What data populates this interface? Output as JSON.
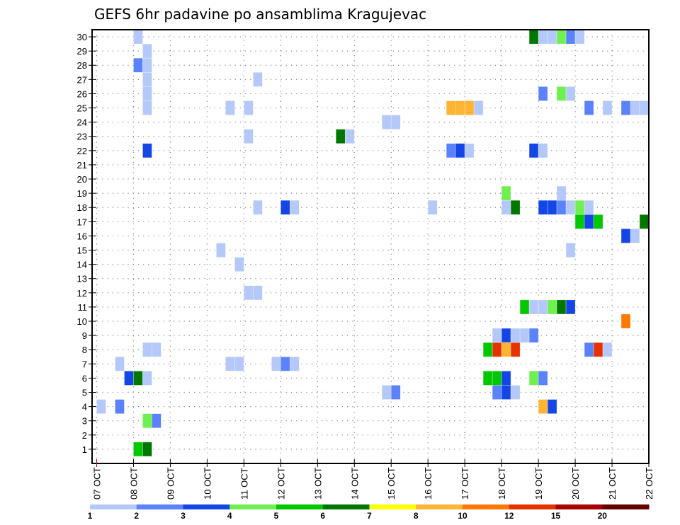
{
  "chart_data": {
    "type": "heatmap",
    "title": "GEFS 6hr padavine po ansamblima Kragujevac",
    "xlabel": "",
    "ylabel": "",
    "x_tick_labels": [
      "07 OCT",
      "08 OCT",
      "09 OCT",
      "10 OCT",
      "11 OCT",
      "12 OCT",
      "13 OCT",
      "14 OCT",
      "15 OCT",
      "16 OCT",
      "17 OCT",
      "18 OCT",
      "19 OCT",
      "20 OCT",
      "21 OCT",
      "22 OCT"
    ],
    "x_steps_per_day": 4,
    "x_range_steps": [
      -0.5,
      60
    ],
    "y_tick_labels": [
      "1",
      "2",
      "3",
      "4",
      "5",
      "6",
      "7",
      "8",
      "9",
      "10",
      "11",
      "12",
      "13",
      "14",
      "15",
      "16",
      "17",
      "18",
      "19",
      "20",
      "21",
      "22",
      "23",
      "24",
      "25",
      "26",
      "27",
      "28",
      "29",
      "30"
    ],
    "y_range": [
      0,
      30.5
    ],
    "grid": true,
    "colorbar": {
      "placement": "bottom",
      "labels": [
        "1",
        "2",
        "3",
        "4",
        "5",
        "6",
        "7",
        "8",
        "10",
        "12",
        "15",
        "20"
      ],
      "colors": [
        "#b4c8fa",
        "#5a82fa",
        "#1446e6",
        "#6ef050",
        "#00c800",
        "#007800",
        "#ffff00",
        "#ffb432",
        "#ff7800",
        "#e63200",
        "#aa0000",
        "#640000"
      ]
    },
    "cell_format": "[member, step_index_from_07OCT_00Z, color_bin_index]",
    "cells": [
      [
        30,
        4,
        0
      ],
      [
        30,
        47,
        5
      ],
      [
        30,
        48,
        0
      ],
      [
        30,
        49,
        0
      ],
      [
        30,
        50,
        3
      ],
      [
        30,
        51,
        1
      ],
      [
        30,
        52,
        0
      ],
      [
        29,
        5,
        0
      ],
      [
        28,
        4,
        1
      ],
      [
        28,
        5,
        0
      ],
      [
        27,
        5,
        0
      ],
      [
        27,
        17,
        0
      ],
      [
        26,
        5,
        0
      ],
      [
        26,
        48,
        1
      ],
      [
        26,
        50,
        3
      ],
      [
        26,
        51,
        0
      ],
      [
        25,
        5,
        0
      ],
      [
        25,
        14,
        0
      ],
      [
        25,
        16,
        0
      ],
      [
        25,
        38,
        7
      ],
      [
        25,
        39,
        7
      ],
      [
        25,
        40,
        7
      ],
      [
        25,
        41,
        0
      ],
      [
        25,
        53,
        1
      ],
      [
        25,
        55,
        0
      ],
      [
        25,
        57,
        1
      ],
      [
        25,
        58,
        0
      ],
      [
        25,
        59,
        0
      ],
      [
        24,
        31,
        0
      ],
      [
        24,
        32,
        0
      ],
      [
        23,
        16,
        0
      ],
      [
        23,
        26,
        5
      ],
      [
        23,
        27,
        0
      ],
      [
        22,
        5,
        2
      ],
      [
        22,
        38,
        1
      ],
      [
        22,
        39,
        2
      ],
      [
        22,
        40,
        0
      ],
      [
        22,
        47,
        2
      ],
      [
        22,
        48,
        0
      ],
      [
        19,
        44,
        3
      ],
      [
        19,
        50,
        0
      ],
      [
        18,
        17,
        0
      ],
      [
        18,
        20,
        2
      ],
      [
        18,
        21,
        0
      ],
      [
        18,
        36,
        0
      ],
      [
        18,
        44,
        0
      ],
      [
        18,
        45,
        5
      ],
      [
        18,
        48,
        2
      ],
      [
        18,
        49,
        2
      ],
      [
        18,
        50,
        1
      ],
      [
        18,
        51,
        0
      ],
      [
        18,
        52,
        3
      ],
      [
        18,
        53,
        0
      ],
      [
        17,
        52,
        4
      ],
      [
        17,
        53,
        2
      ],
      [
        17,
        54,
        4
      ],
      [
        17,
        59,
        5
      ],
      [
        16,
        57,
        2
      ],
      [
        16,
        58,
        0
      ],
      [
        15,
        13,
        0
      ],
      [
        15,
        51,
        0
      ],
      [
        14,
        15,
        0
      ],
      [
        12,
        16,
        0
      ],
      [
        12,
        17,
        0
      ],
      [
        11,
        46,
        4
      ],
      [
        11,
        47,
        0
      ],
      [
        11,
        48,
        0
      ],
      [
        11,
        49,
        3
      ],
      [
        11,
        50,
        5
      ],
      [
        11,
        51,
        2
      ],
      [
        10,
        57,
        8
      ],
      [
        9,
        43,
        0
      ],
      [
        9,
        44,
        2
      ],
      [
        9,
        45,
        0
      ],
      [
        9,
        46,
        0
      ],
      [
        9,
        47,
        1
      ],
      [
        8,
        5,
        0
      ],
      [
        8,
        6,
        0
      ],
      [
        8,
        42,
        4
      ],
      [
        8,
        43,
        9
      ],
      [
        8,
        44,
        7
      ],
      [
        8,
        45,
        9
      ],
      [
        8,
        53,
        1
      ],
      [
        8,
        54,
        9
      ],
      [
        8,
        55,
        0
      ],
      [
        7,
        2,
        0
      ],
      [
        7,
        14,
        0
      ],
      [
        7,
        15,
        0
      ],
      [
        7,
        19,
        0
      ],
      [
        7,
        20,
        1
      ],
      [
        7,
        21,
        0
      ],
      [
        6,
        3,
        2
      ],
      [
        6,
        4,
        5
      ],
      [
        6,
        5,
        0
      ],
      [
        6,
        42,
        4
      ],
      [
        6,
        43,
        4
      ],
      [
        6,
        44,
        2
      ],
      [
        6,
        47,
        3
      ],
      [
        6,
        48,
        1
      ],
      [
        5,
        31,
        0
      ],
      [
        5,
        32,
        1
      ],
      [
        5,
        43,
        1
      ],
      [
        5,
        44,
        2
      ],
      [
        5,
        45,
        0
      ],
      [
        4,
        0,
        0
      ],
      [
        4,
        2,
        1
      ],
      [
        4,
        48,
        7
      ],
      [
        4,
        49,
        2
      ],
      [
        3,
        5,
        3
      ],
      [
        3,
        6,
        1
      ],
      [
        1,
        4,
        4
      ],
      [
        1,
        5,
        5
      ]
    ]
  }
}
